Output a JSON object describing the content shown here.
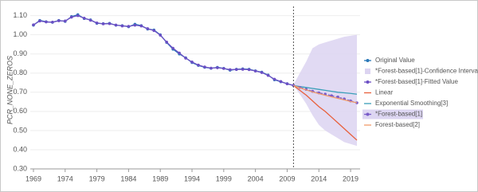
{
  "chart_data": {
    "type": "line",
    "y_label": "PCR_NONE_ZEROS",
    "xlim": [
      1968.5,
      2020.5
    ],
    "xticks": [
      1969,
      1974,
      1979,
      1984,
      1989,
      1994,
      1999,
      2004,
      2009,
      2014,
      2019
    ],
    "ylim": [
      0.3,
      1.14
    ],
    "yticks": [
      {
        "value": 0.3,
        "label": "0.30"
      },
      {
        "value": 0.4,
        "label": "0.40"
      },
      {
        "value": 0.5,
        "label": "0.50"
      },
      {
        "value": 0.6,
        "label": "0.60"
      },
      {
        "value": 0.7,
        "label": "0.70"
      },
      {
        "value": 0.8,
        "label": "0.80"
      },
      {
        "value": 0.9,
        "label": "0.90"
      },
      {
        "value": 1.0,
        "label": "1.00"
      },
      {
        "value": 1.1,
        "label": "1.10"
      }
    ],
    "forecast_line_x": 2010,
    "series": [
      {
        "name": "Original Value",
        "type": "line",
        "color": "#2a78b8",
        "markers": true,
        "colored_label": false,
        "x": [
          1969,
          1970,
          1971,
          1972,
          1973,
          1974,
          1975,
          1976,
          1977,
          1978,
          1979,
          1980,
          1981,
          1982,
          1983,
          1984,
          1985,
          1986,
          1987,
          1988,
          1989,
          1990,
          1991,
          1992,
          1993,
          1994,
          1995,
          1996,
          1997,
          1998,
          1999,
          2000,
          2001,
          2002,
          2003,
          2004,
          2005,
          2006,
          2007,
          2008,
          2009,
          2010
        ],
        "values": [
          1.05,
          1.075,
          1.068,
          1.065,
          1.075,
          1.07,
          1.095,
          1.105,
          1.085,
          1.078,
          1.06,
          1.058,
          1.06,
          1.05,
          1.048,
          1.042,
          1.055,
          1.048,
          1.03,
          1.025,
          1.0,
          0.96,
          0.925,
          0.9,
          0.88,
          0.855,
          0.84,
          0.83,
          0.825,
          0.83,
          0.825,
          0.815,
          0.82,
          0.822,
          0.82,
          0.812,
          0.805,
          0.79,
          0.765,
          0.755,
          0.745,
          0.735
        ]
      },
      {
        "name": "*Forest-based[1]-Confidence Interval",
        "type": "band",
        "color": "#dcd4f1",
        "colored_label": false,
        "x": [
          2010,
          2011,
          2012,
          2013,
          2014,
          2015,
          2016,
          2017,
          2018,
          2019,
          2020
        ],
        "upper": [
          0.74,
          0.8,
          0.86,
          0.93,
          0.95,
          0.96,
          0.97,
          0.98,
          0.99,
          0.995,
          1.0
        ],
        "lower": [
          0.735,
          0.69,
          0.64,
          0.58,
          0.53,
          0.5,
          0.48,
          0.46,
          0.44,
          0.43,
          0.42
        ]
      },
      {
        "name": "*Forest-based[1]-Fitted Value",
        "type": "line",
        "color": "#6b4fc4",
        "markers": true,
        "colored_label": false,
        "x": [
          1969,
          1970,
          1971,
          1972,
          1973,
          1974,
          1975,
          1976,
          1977,
          1978,
          1979,
          1980,
          1981,
          1982,
          1983,
          1984,
          1985,
          1986,
          1987,
          1988,
          1989,
          1990,
          1991,
          1992,
          1993,
          1994,
          1995,
          1996,
          1997,
          1998,
          1999,
          2000,
          2001,
          2002,
          2003,
          2004,
          2005,
          2006,
          2007,
          2008,
          2009,
          2010
        ],
        "values": [
          1.052,
          1.072,
          1.067,
          1.066,
          1.073,
          1.072,
          1.092,
          1.1,
          1.087,
          1.076,
          1.062,
          1.057,
          1.058,
          1.051,
          1.046,
          1.044,
          1.05,
          1.046,
          1.032,
          1.022,
          0.998,
          0.962,
          0.93,
          0.905,
          0.878,
          0.858,
          0.842,
          0.832,
          0.826,
          0.828,
          0.824,
          0.818,
          0.819,
          0.82,
          0.818,
          0.811,
          0.803,
          0.788,
          0.768,
          0.756,
          0.744,
          0.736
        ]
      },
      {
        "name": "Linear",
        "type": "line",
        "color": "#e8603c",
        "markers": false,
        "colored_label": true,
        "x": [
          2010,
          2011,
          2012,
          2013,
          2014,
          2015,
          2016,
          2017,
          2018,
          2019,
          2020
        ],
        "values": [
          0.735,
          0.71,
          0.685,
          0.655,
          0.625,
          0.6,
          0.57,
          0.54,
          0.51,
          0.48,
          0.45
        ]
      },
      {
        "name": "Exponential Smoothing[3]",
        "type": "line",
        "color": "#3a9fb8",
        "markers": false,
        "colored_label": true,
        "x": [
          2010,
          2011,
          2012,
          2013,
          2014,
          2015,
          2016,
          2017,
          2018,
          2019,
          2020
        ],
        "values": [
          0.735,
          0.73,
          0.725,
          0.72,
          0.715,
          0.71,
          0.705,
          0.7,
          0.697,
          0.694,
          0.69
        ]
      },
      {
        "name": "*Forest-based[1]",
        "type": "line",
        "color": "#7a5cc9",
        "markers": true,
        "dashed": true,
        "colored_label": true,
        "selected": true,
        "x": [
          2010,
          2011,
          2012,
          2013,
          2014,
          2015,
          2016,
          2017,
          2018,
          2019,
          2020
        ],
        "values": [
          0.735,
          0.725,
          0.715,
          0.705,
          0.697,
          0.69,
          0.682,
          0.675,
          0.665,
          0.655,
          0.645
        ]
      },
      {
        "name": "Forest-based[2]",
        "type": "line",
        "color": "#f09a6a",
        "markers": false,
        "colored_label": true,
        "x": [
          2010,
          2011,
          2012,
          2013,
          2014,
          2015,
          2016,
          2017,
          2018,
          2019,
          2020
        ],
        "values": [
          0.735,
          0.723,
          0.712,
          0.702,
          0.693,
          0.684,
          0.676,
          0.668,
          0.66,
          0.652,
          0.645
        ]
      }
    ]
  }
}
